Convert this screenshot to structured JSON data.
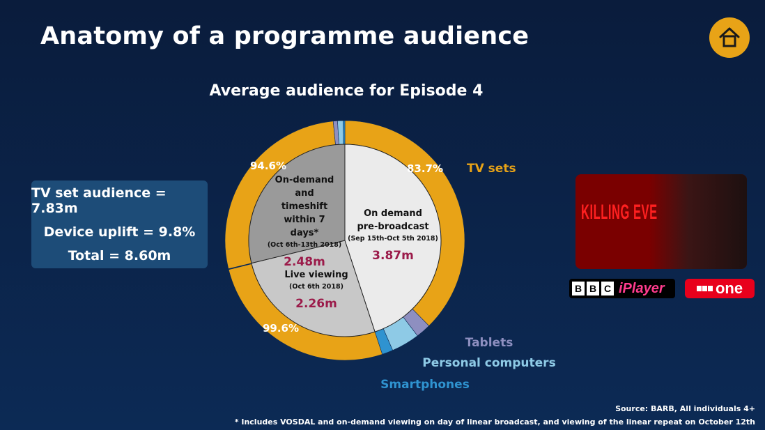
{
  "header": {
    "title": "Anatomy of a programme audience",
    "home_icon": "home-icon",
    "home_color": "#e8a317"
  },
  "summary": {
    "line1": "TV set audience = 7.83m",
    "line2": "Device uplift = 9.8%",
    "line3": "Total = 8.60m"
  },
  "promo": {
    "show_title": "KILLING EVE",
    "bbc_letters": [
      "B",
      "B",
      "C"
    ],
    "iplayer_text": "iPlayer",
    "one_text": "one"
  },
  "footer": {
    "source": "Source: BARB, All individuals 4+",
    "note": "* Includes VOSDAL and on-demand viewing on day of linear broadcast, and viewing of the linear repeat on October 12th"
  },
  "chart_data": {
    "type": "pie",
    "title": "Average audience for Episode 4",
    "colors": {
      "tv_sets": "#e8a317",
      "tablets": "#8e8fc0",
      "personal_computers": "#8ecae6",
      "smartphones": "#2f93d0",
      "on_demand_pre": "#ebebeb",
      "live": "#c8c8c8",
      "timeshift": "#9a9a9a",
      "value_text": "#9b1b4a"
    },
    "inner": [
      {
        "name": "On demand pre-broadcast",
        "dates": "(Sep 15th-Oct 5th 2018)",
        "value": 3.87,
        "value_label": "3.87m"
      },
      {
        "name": "Live viewing",
        "dates": "(Oct 6th 2018)",
        "value": 2.26,
        "value_label": "2.26m"
      },
      {
        "name": "On-demand and timeshift within 7 days*",
        "dates": "(Oct 6th-13th 2018)",
        "value": 2.48,
        "value_label": "2.48m"
      }
    ],
    "outer_series": [
      "TV sets",
      "Tablets",
      "Personal computers",
      "Smartphones"
    ],
    "outer": [
      {
        "segment": "On demand pre-broadcast",
        "tv_sets_pct": 83.7,
        "tv_sets_label": "83.7%",
        "tablets_pct": 4.5,
        "personal_computers_pct": 8.5,
        "smartphones_pct": 3.3
      },
      {
        "segment": "Live viewing",
        "tv_sets_pct": 99.6,
        "tv_sets_label": "99.6%",
        "tablets_pct": 0.1,
        "personal_computers_pct": 0.2,
        "smartphones_pct": 0.1
      },
      {
        "segment": "On-demand and timeshift within 7 days*",
        "tv_sets_pct": 94.6,
        "tv_sets_label": "94.6%",
        "tablets_pct": 2.0,
        "personal_computers_pct": 2.6,
        "smartphones_pct": 0.8
      }
    ]
  }
}
